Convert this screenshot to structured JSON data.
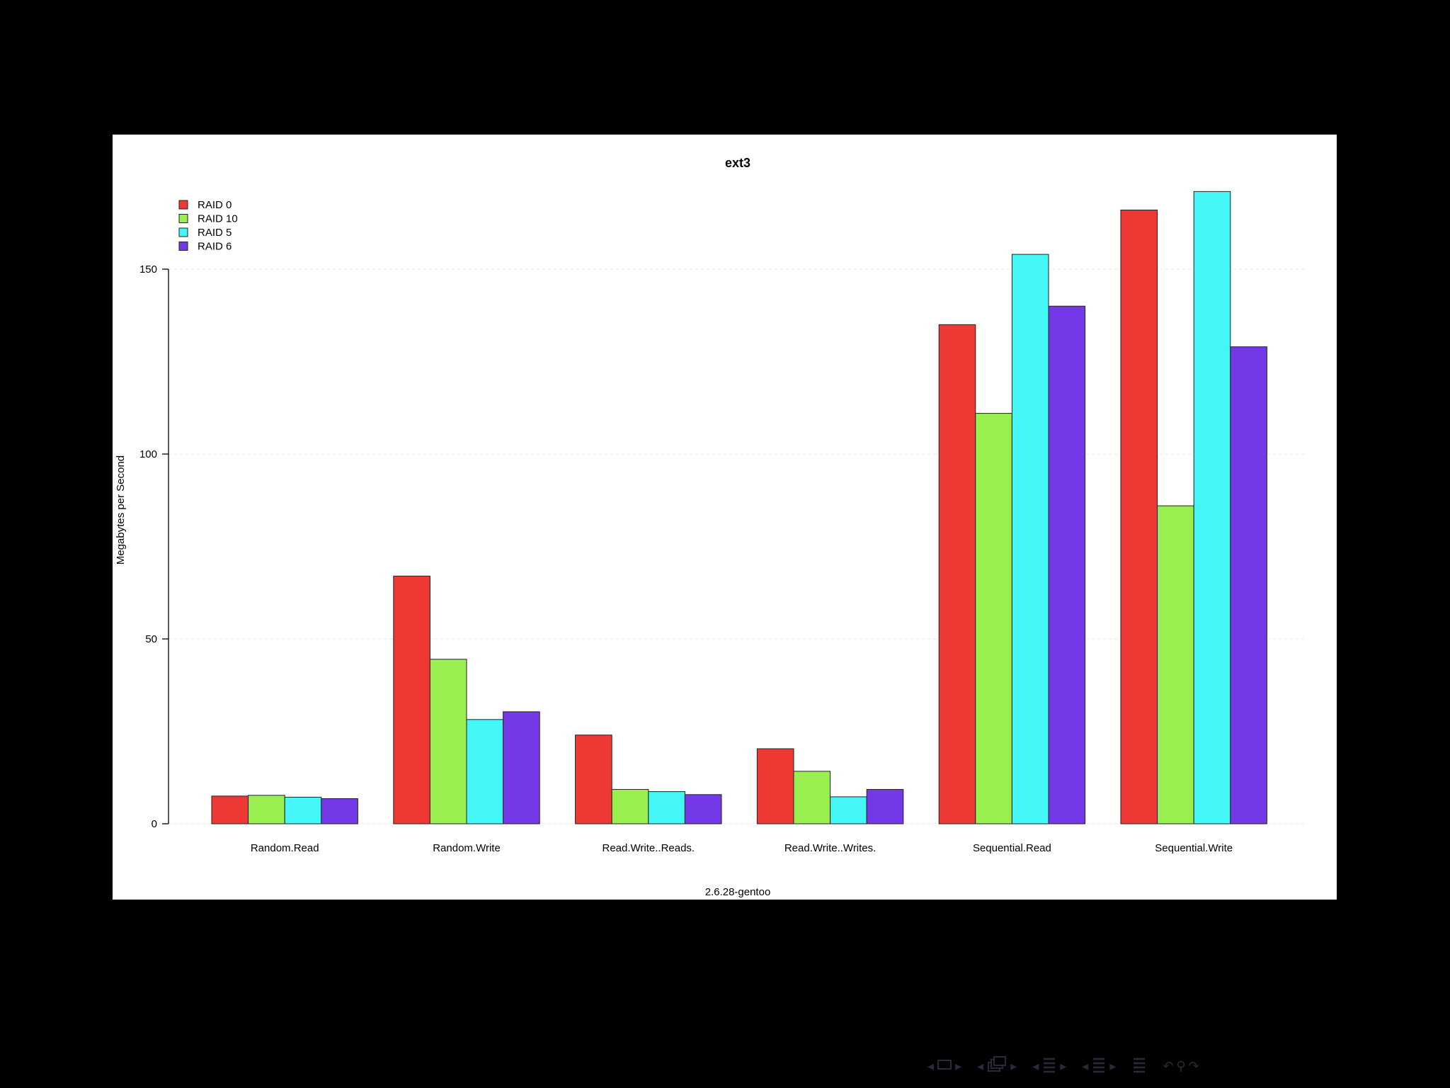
{
  "chart_data": {
    "type": "bar",
    "title": "ext3",
    "xlabel": "2.6.28-gentoo",
    "ylabel": "Megabytes per Second",
    "categories": [
      "Random.Read",
      "Random.Write",
      "Read.Write..Reads.",
      "Read.Write..Writes.",
      "Sequential.Read",
      "Sequential.Write"
    ],
    "series": [
      {
        "name": "RAID 0",
        "color": "#ee3833",
        "values": [
          7.5,
          67,
          24,
          20.3,
          135,
          166
        ]
      },
      {
        "name": "RAID 10",
        "color": "#99ee50",
        "values": [
          7.7,
          44.5,
          9.3,
          14.2,
          111,
          86
        ]
      },
      {
        "name": "RAID 5",
        "color": "#44f6f6",
        "values": [
          7.2,
          28.2,
          8.7,
          7.3,
          154,
          171
        ]
      },
      {
        "name": "RAID 6",
        "color": "#7439e6",
        "values": [
          6.8,
          30.3,
          7.9,
          9.3,
          140,
          129
        ]
      }
    ],
    "yticks": [
      0,
      50,
      100,
      150
    ],
    "ylim": [
      0,
      175
    ],
    "grid": true,
    "legend_position": "top-left"
  },
  "navigation": {
    "icons": [
      "prev-arrow-icon",
      "frame-icon",
      "next-arrow-icon",
      "prev-arrow-icon",
      "slides-icon",
      "next-arrow-icon",
      "prev-arrow-icon",
      "section-icon",
      "next-arrow-icon",
      "prev-arrow-icon",
      "subsection-icon",
      "next-arrow-icon",
      "outline-icon",
      "undo-icon",
      "search-icon",
      "redo-icon"
    ],
    "color": "#2a2a3a"
  }
}
